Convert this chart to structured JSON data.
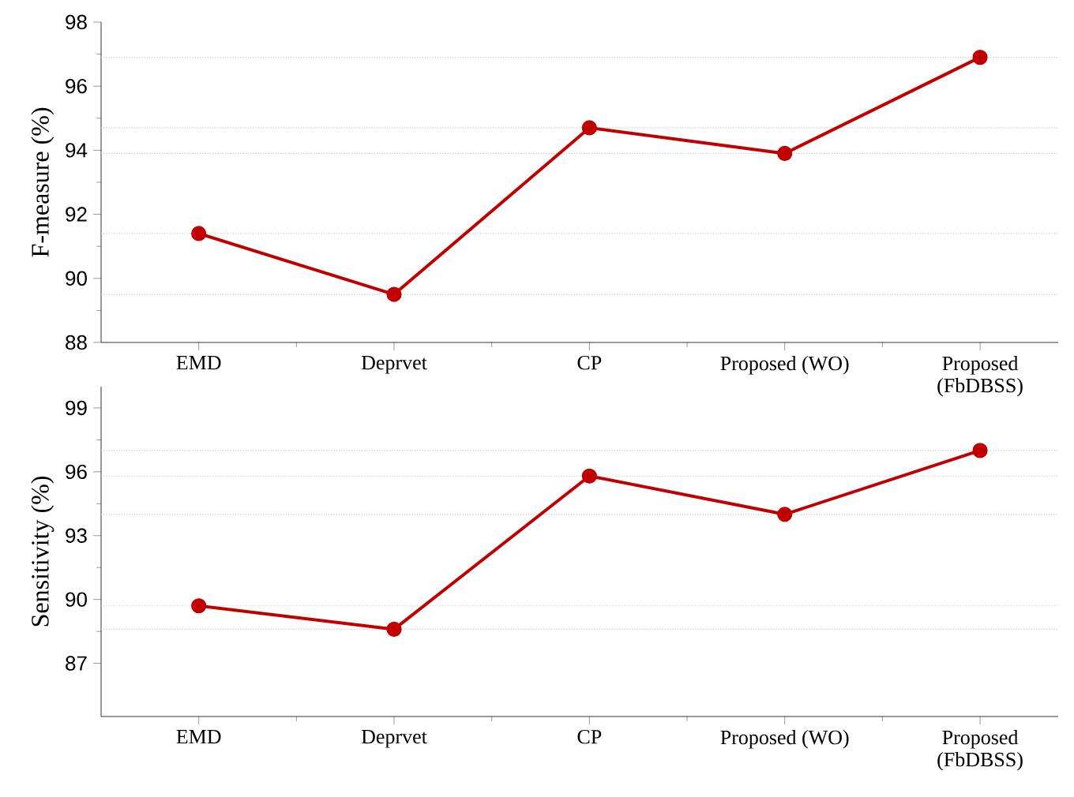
{
  "chart_data": [
    {
      "type": "line",
      "ylabel": "F-measure (%)",
      "categories": [
        "EMD",
        "Deprvet",
        "CP",
        "Proposed (WO)",
        "Proposed\n(FbDBSS)"
      ],
      "series": [
        {
          "color": "#c00000",
          "values": [
            91.4,
            89.5,
            94.7,
            93.9,
            96.9
          ]
        }
      ],
      "ylim": [
        88,
        98
      ],
      "yticks": [
        88,
        90,
        92,
        94,
        96,
        98
      ],
      "marker": "circle",
      "line_style": "solid",
      "ref_lines": [
        {
          "axis": "y",
          "value": 91.4,
          "color": "#c8c8c8",
          "line_style": "dotted"
        },
        {
          "axis": "y",
          "value": 89.5,
          "color": "#c8c8c8",
          "line_style": "dotted"
        },
        {
          "axis": "y",
          "value": 94.7,
          "color": "#c8c8c8",
          "line_style": "dotted"
        },
        {
          "axis": "y",
          "value": 93.9,
          "color": "#c8c8c8",
          "line_style": "dotted"
        },
        {
          "axis": "y",
          "value": 96.9,
          "color": "#c8c8c8",
          "line_style": "dotted"
        }
      ]
    },
    {
      "type": "line",
      "ylabel": "Sensitivity (%)",
      "categories": [
        "EMD",
        "Deprvet",
        "CP",
        "Proposed (WO)",
        "Proposed\n(FbDBSS)"
      ],
      "series": [
        {
          "color": "#c00000",
          "values": [
            89.7,
            88.6,
            95.8,
            94.0,
            97.0
          ]
        }
      ],
      "ylim": [
        84.5,
        100
      ],
      "yticks": [
        87,
        90,
        93,
        96,
        99
      ],
      "marker": "circle",
      "line_style": "solid",
      "ref_lines": [
        {
          "axis": "y",
          "value": 89.7,
          "color": "#c8c8c8",
          "line_style": "dotted"
        },
        {
          "axis": "y",
          "value": 88.6,
          "color": "#c8c8c8",
          "line_style": "dotted"
        },
        {
          "axis": "y",
          "value": 95.8,
          "color": "#c8c8c8",
          "line_style": "dotted"
        },
        {
          "axis": "y",
          "value": 94.0,
          "color": "#c8c8c8",
          "line_style": "dotted"
        },
        {
          "axis": "y",
          "value": 97.0,
          "color": "#c8c8c8",
          "line_style": "dotted"
        }
      ]
    }
  ]
}
